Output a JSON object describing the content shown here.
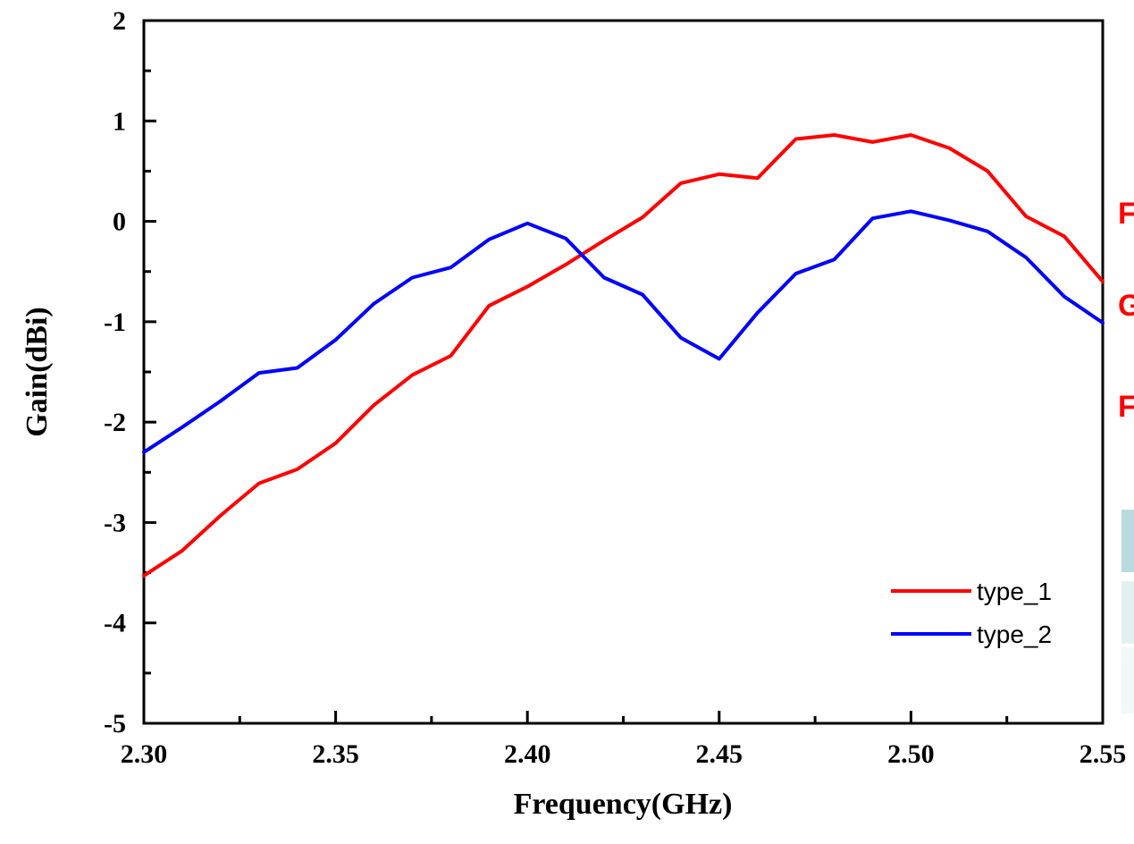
{
  "chart_data": {
    "type": "line",
    "xlabel": "Frequency(GHz)",
    "ylabel": "Gain(dBi)",
    "xlim": [
      2.3,
      2.55
    ],
    "ylim": [
      -5,
      2
    ],
    "x_ticks": [
      "2.30",
      "2.35",
      "2.40",
      "2.45",
      "2.50",
      "2.55"
    ],
    "y_ticks": [
      "2",
      "1",
      "0",
      "-1",
      "-2",
      "-3",
      "-4",
      "-5"
    ],
    "grid": false,
    "legend_position": "bottom-right",
    "x": [
      2.3,
      2.31,
      2.32,
      2.33,
      2.34,
      2.35,
      2.36,
      2.37,
      2.38,
      2.39,
      2.4,
      2.41,
      2.42,
      2.43,
      2.44,
      2.45,
      2.46,
      2.47,
      2.48,
      2.49,
      2.5,
      2.51,
      2.52,
      2.53,
      2.54,
      2.55
    ],
    "series": [
      {
        "name": "type_1",
        "color": "#ff0000",
        "values": [
          -3.53,
          -3.28,
          -2.93,
          -2.61,
          -2.47,
          -2.21,
          -1.83,
          -1.53,
          -1.34,
          -0.84,
          -0.65,
          -0.43,
          -0.19,
          0.04,
          0.38,
          0.47,
          0.43,
          0.82,
          0.86,
          0.79,
          0.86,
          0.73,
          0.5,
          0.05,
          -0.15,
          -0.6
        ]
      },
      {
        "name": "type_2",
        "color": "#0000ff",
        "values": [
          -2.3,
          -2.05,
          -1.79,
          -1.51,
          -1.46,
          -1.18,
          -0.82,
          -0.56,
          -0.46,
          -0.18,
          -0.02,
          -0.17,
          -0.56,
          -0.73,
          -1.16,
          -1.37,
          -0.91,
          -0.52,
          -0.38,
          0.03,
          0.1,
          0.01,
          -0.1,
          -0.36,
          -0.75,
          -1.01
        ]
      }
    ]
  },
  "side_fragments": [
    "F",
    "G",
    "F"
  ]
}
